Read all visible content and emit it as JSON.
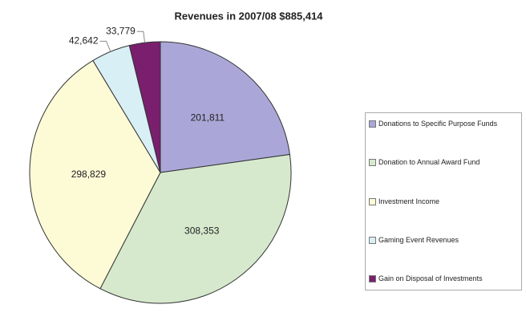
{
  "chart_data": {
    "type": "pie",
    "title": "Revenues in 2007/08 $885,414",
    "categories": [
      "Donations to Specific Purpose Funds",
      "Donation to Annual Award Fund",
      "Investment Income",
      "Gaming Event Revenues",
      "Gain on Disposal of Investments"
    ],
    "values": [
      201811,
      308353,
      298829,
      42642,
      33779
    ],
    "value_labels": [
      "201,811",
      "308,353",
      "298,829",
      "42,642",
      "33,779"
    ],
    "colors": [
      "#aaa7d8",
      "#d6e9cd",
      "#fdfad6",
      "#d9eff6",
      "#7a1f6e"
    ]
  }
}
